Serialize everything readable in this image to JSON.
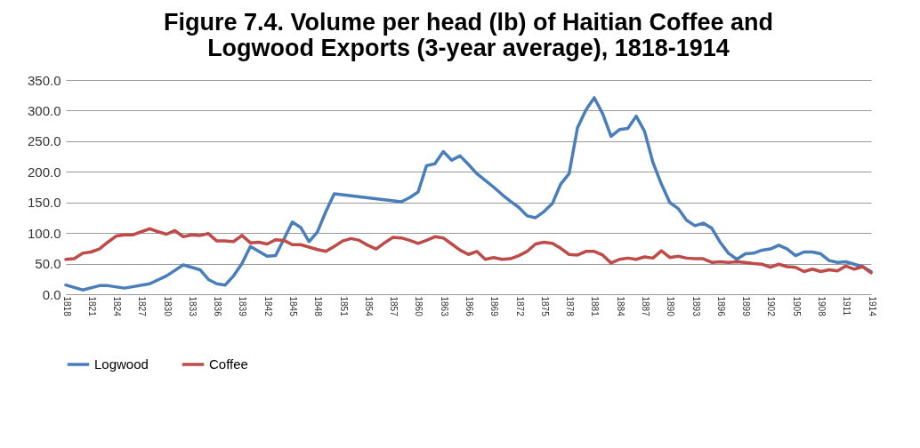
{
  "chart_data": {
    "type": "line",
    "title": "Figure 7.4. Volume per head (lb) of Haitian Coffee and\nLogwood Exports (3-year average), 1818-1914",
    "xlim": [
      1818,
      1914
    ],
    "xticks": [
      1818,
      1821,
      1824,
      1827,
      1830,
      1833,
      1836,
      1839,
      1842,
      1845,
      1848,
      1851,
      1854,
      1857,
      1860,
      1863,
      1866,
      1869,
      1872,
      1875,
      1878,
      1881,
      1884,
      1887,
      1890,
      1893,
      1896,
      1899,
      1902,
      1905,
      1908,
      1911,
      1914
    ],
    "ylim": [
      0,
      350
    ],
    "yticks": [
      {
        "value": 0,
        "label": "0.0"
      },
      {
        "value": 50,
        "label": "50.0"
      },
      {
        "value": 100,
        "label": "100.0"
      },
      {
        "value": 150,
        "label": "150.0"
      },
      {
        "value": 200,
        "label": "200.0"
      },
      {
        "value": 250,
        "label": "250.0"
      },
      {
        "value": 300,
        "label": "300.0"
      },
      {
        "value": 350,
        "label": "350.0"
      }
    ],
    "grid": "y",
    "legend": "bottom",
    "line_style": "solid",
    "series": [
      {
        "name": "Logwood",
        "color": "#4a7ebb",
        "x": [
          1818,
          1820,
          1822,
          1823,
          1825,
          1828,
          1830,
          1832,
          1834,
          1835,
          1836,
          1837,
          1838,
          1839,
          1840,
          1841,
          1842,
          1843,
          1844,
          1845,
          1846,
          1847,
          1848,
          1849,
          1850,
          1858,
          1859,
          1860,
          1861,
          1862,
          1863,
          1864,
          1865,
          1866,
          1867,
          1868,
          1869,
          1870,
          1871,
          1872,
          1873,
          1874,
          1875,
          1876,
          1877,
          1878,
          1879,
          1880,
          1881,
          1882,
          1883,
          1884,
          1885,
          1886,
          1887,
          1888,
          1889,
          1890,
          1891,
          1892,
          1893,
          1894,
          1895,
          1896,
          1897,
          1898,
          1899,
          1900,
          1901,
          1902,
          1903,
          1904,
          1905,
          1906,
          1907,
          1908,
          1909,
          1910,
          1911,
          1912,
          1913,
          1914
        ],
        "values": [
          15,
          7,
          14,
          14,
          10,
          17,
          30,
          48,
          40,
          24,
          17,
          15,
          30,
          50,
          78,
          70,
          62,
          63,
          90,
          118,
          109,
          86,
          102,
          135,
          164,
          151,
          158,
          167,
          210,
          213,
          233,
          219,
          226,
          212,
          197,
          186,
          175,
          163,
          152,
          142,
          128,
          125,
          135,
          148,
          180,
          197,
          272,
          301,
          321,
          295,
          258,
          269,
          271,
          291,
          266,
          215,
          180,
          150,
          140,
          121,
          112,
          116,
          108,
          85,
          67,
          57,
          66,
          67,
          72,
          74,
          80,
          74,
          63,
          69,
          69,
          66,
          55,
          52,
          53,
          49,
          45,
          37
        ]
      },
      {
        "name": "Coffee",
        "color": "#be4b48",
        "x": [
          1818,
          1819,
          1820,
          1821,
          1822,
          1823,
          1824,
          1825,
          1826,
          1827,
          1828,
          1829,
          1830,
          1831,
          1832,
          1833,
          1834,
          1835,
          1836,
          1837,
          1838,
          1839,
          1840,
          1841,
          1842,
          1843,
          1844,
          1845,
          1846,
          1847,
          1848,
          1849,
          1850,
          1851,
          1852,
          1853,
          1854,
          1855,
          1856,
          1857,
          1858,
          1859,
          1860,
          1861,
          1862,
          1863,
          1864,
          1865,
          1866,
          1867,
          1868,
          1869,
          1870,
          1871,
          1872,
          1873,
          1874,
          1875,
          1876,
          1877,
          1878,
          1879,
          1880,
          1881,
          1882,
          1883,
          1884,
          1885,
          1886,
          1887,
          1888,
          1889,
          1890,
          1891,
          1892,
          1893,
          1894,
          1895,
          1896,
          1897,
          1898,
          1899,
          1900,
          1901,
          1902,
          1903,
          1904,
          1905,
          1906,
          1907,
          1908,
          1909,
          1910,
          1911,
          1912,
          1913,
          1914
        ],
        "values": [
          57,
          58,
          67,
          69,
          74,
          85,
          95,
          97,
          97,
          102,
          107,
          102,
          98,
          104,
          94,
          97,
          96,
          99,
          87,
          87,
          86,
          96,
          84,
          85,
          82,
          89,
          88,
          81,
          81,
          77,
          73,
          70,
          78,
          87,
          91,
          88,
          80,
          74,
          84,
          93,
          92,
          88,
          83,
          88,
          94,
          92,
          82,
          72,
          65,
          70,
          57,
          60,
          57,
          58,
          63,
          70,
          82,
          85,
          83,
          75,
          65,
          64,
          70,
          70,
          64,
          51,
          57,
          59,
          57,
          61,
          59,
          71,
          60,
          62,
          59,
          58,
          58,
          52,
          53,
          52,
          53,
          52,
          50,
          49,
          44,
          49,
          45,
          44,
          37,
          41,
          37,
          40,
          38,
          46,
          41,
          45,
          35
        ]
      }
    ]
  }
}
